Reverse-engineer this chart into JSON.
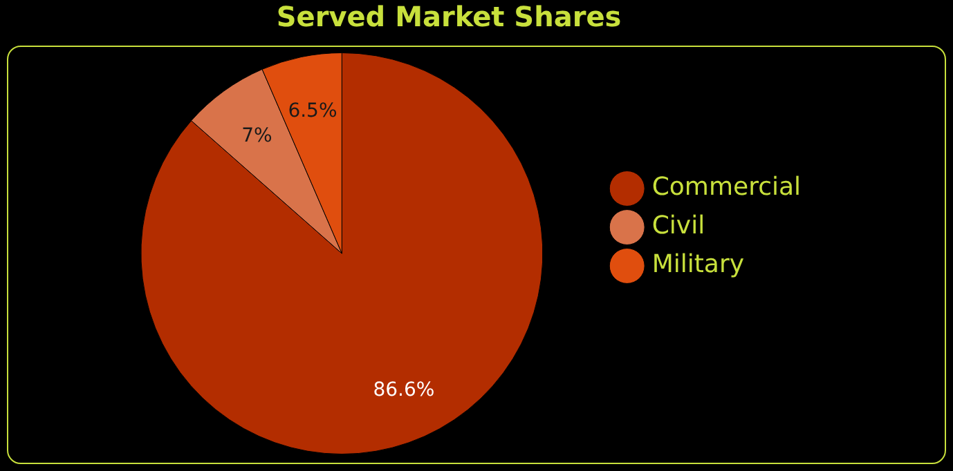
{
  "chart_data": {
    "type": "pie",
    "title": "Served Market Shares",
    "categories": [
      "Commercial",
      "Civil",
      "Military"
    ],
    "values": [
      86.6,
      7,
      6.5
    ],
    "colors": [
      "#b32d00",
      "#d9734a",
      "#e04e0e"
    ],
    "value_labels": [
      "86.6%",
      "7%",
      "6.5%"
    ],
    "legend": "right"
  }
}
